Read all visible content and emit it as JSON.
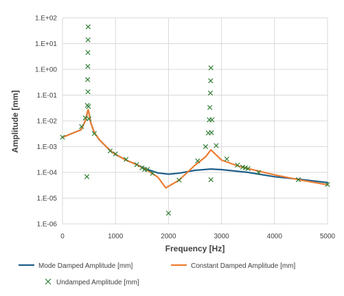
{
  "chart_data": {
    "type": "line",
    "xlabel": "Frequency [Hz]",
    "ylabel": "Amplitude [mm]",
    "xlim": [
      0,
      5000
    ],
    "ylim": [
      1e-06,
      100
    ],
    "yscale": "log",
    "grid": true,
    "legend_position": "bottom",
    "x_ticks": [
      "0",
      "1000",
      "2000",
      "3000",
      "4000",
      "5000"
    ],
    "y_ticks": [
      "1.E-06",
      "1.E-05",
      "1.E-04",
      "1.E-03",
      "1.E-02",
      "1.E-01",
      "1.E+00",
      "1.E+01",
      "1.E+02"
    ],
    "series": [
      {
        "name": "Mode Damped Amplitude [mm]",
        "color": "#1f5f8b",
        "kind": "line",
        "points": [
          [
            0,
            0.0023
          ],
          [
            350,
            0.0045
          ],
          [
            430,
            0.01
          ],
          [
            470,
            0.022
          ],
          [
            485,
            0.027
          ],
          [
            500,
            0.02
          ],
          [
            530,
            0.009
          ],
          [
            600,
            0.0035
          ],
          [
            700,
            0.0018
          ],
          [
            900,
            0.0007
          ],
          [
            1000,
            0.0005
          ],
          [
            1200,
            0.0003
          ],
          [
            1400,
            0.0002
          ],
          [
            1600,
            0.00013
          ],
          [
            1800,
            9.5e-05
          ],
          [
            2000,
            8.5e-05
          ],
          [
            2200,
            9.3e-05
          ],
          [
            2500,
            0.00012
          ],
          [
            2800,
            0.000135
          ],
          [
            3000,
            0.000128
          ],
          [
            3500,
            0.0001
          ],
          [
            4000,
            6.8e-05
          ],
          [
            4500,
            5.3e-05
          ],
          [
            5000,
            4e-05
          ]
        ]
      },
      {
        "name": "Constant Damped Amplitude [mm]",
        "color": "#ed7d31",
        "kind": "line",
        "points": [
          [
            0,
            0.0023
          ],
          [
            350,
            0.0045
          ],
          [
            430,
            0.01
          ],
          [
            470,
            0.022
          ],
          [
            485,
            0.027
          ],
          [
            500,
            0.02
          ],
          [
            530,
            0.009
          ],
          [
            600,
            0.0035
          ],
          [
            700,
            0.0018
          ],
          [
            900,
            0.0007
          ],
          [
            1000,
            0.0005
          ],
          [
            1200,
            0.0003
          ],
          [
            1400,
            0.0002
          ],
          [
            1600,
            0.00012
          ],
          [
            1800,
            6.5e-05
          ],
          [
            1950,
            2.5e-05
          ],
          [
            2200,
            5e-05
          ],
          [
            2500,
            0.00019
          ],
          [
            2700,
            0.0004
          ],
          [
            2800,
            0.00075
          ],
          [
            3000,
            0.0003
          ],
          [
            3300,
            0.00018
          ],
          [
            3500,
            0.00014
          ],
          [
            4000,
            8e-05
          ],
          [
            4500,
            5e-05
          ],
          [
            5000,
            3.3e-05
          ]
        ]
      },
      {
        "name": "Undamped Amplitude [mm]",
        "color": "#2e7d32",
        "kind": "scatter",
        "points": [
          [
            0,
            0.0023
          ],
          [
            360,
            0.006
          ],
          [
            430,
            0.013
          ],
          [
            460,
            6.8e-05
          ],
          [
            470,
            0.04
          ],
          [
            480,
            0.135
          ],
          [
            475,
            0.4
          ],
          [
            478,
            1.3
          ],
          [
            480,
            4.5
          ],
          [
            482,
            14
          ],
          [
            484,
            45
          ],
          [
            490,
            0.036
          ],
          [
            500,
            0.012
          ],
          [
            600,
            0.0032
          ],
          [
            900,
            0.00068
          ],
          [
            1000,
            0.00052
          ],
          [
            1200,
            0.00032
          ],
          [
            1400,
            0.0002
          ],
          [
            1500,
            0.00015
          ],
          [
            1550,
            0.00013
          ],
          [
            1600,
            0.00013
          ],
          [
            1700,
            9.2e-05
          ],
          [
            2000,
            2.6e-06
          ],
          [
            2200,
            5e-05
          ],
          [
            2550,
            0.00028
          ],
          [
            2700,
            0.001
          ],
          [
            2750,
            0.0034
          ],
          [
            2770,
            0.011
          ],
          [
            2780,
            0.033
          ],
          [
            2790,
            0.12
          ],
          [
            2795,
            0.36
          ],
          [
            2800,
            1.15
          ],
          [
            2810,
            0.0035
          ],
          [
            2820,
            0.011
          ],
          [
            2800,
            5.2e-05
          ],
          [
            2900,
            0.0011
          ],
          [
            3100,
            0.00033
          ],
          [
            3300,
            0.00019
          ],
          [
            3400,
            0.00016
          ],
          [
            3450,
            0.00015
          ],
          [
            3500,
            0.00014
          ],
          [
            3700,
            0.0001
          ],
          [
            4450,
            5.2e-05
          ],
          [
            5000,
            3.4e-05
          ]
        ]
      }
    ]
  }
}
